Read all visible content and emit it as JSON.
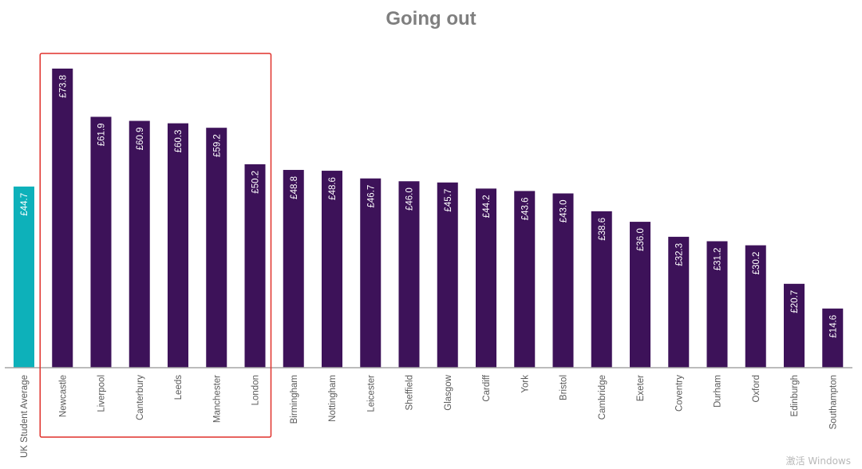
{
  "chart_data": {
    "type": "bar",
    "title": "Going out",
    "categories": [
      "UK Student Average",
      "Newcastle",
      "Liverpool",
      "Canterbury",
      "Leeds",
      "Manchester",
      "London",
      "Birmingham",
      "Nottingham",
      "Leicester",
      "Sheffield",
      "Glasgow",
      "Cardiff",
      "York",
      "Bristol",
      "Cambridge",
      "Exeter",
      "Coventry",
      "Durham",
      "Oxford",
      "Edinburgh",
      "Southampton"
    ],
    "values": [
      44.7,
      73.8,
      61.9,
      60.9,
      60.3,
      59.2,
      50.2,
      48.8,
      48.6,
      46.7,
      46.0,
      45.7,
      44.2,
      43.6,
      43.0,
      38.6,
      36.0,
      32.3,
      31.2,
      30.2,
      20.7,
      14.6
    ],
    "data_labels": [
      "£44.7",
      "£73.8",
      "£61.9",
      "£60.9",
      "£60.3",
      "£59.2",
      "£50.2",
      "£48.8",
      "£48.6",
      "£46.7",
      "£46.0",
      "£45.7",
      "£44.2",
      "£43.6",
      "£43.0",
      "£38.6",
      "£36.0",
      "£32.3",
      "£31.2",
      "£30.2",
      "£20.7",
      "£14.6"
    ],
    "ylim": [
      0,
      78
    ],
    "grid": false,
    "highlight_categories": [
      "Newcastle",
      "Liverpool",
      "Canterbury",
      "Leeds",
      "Manchester",
      "London"
    ],
    "colors": {
      "average_bar": "#0db1ba",
      "bar": "#3d1259",
      "highlight_box": "#e0312b",
      "title": "#7f7f7f",
      "axis": "#a6a6a6",
      "tick_label": "#595959",
      "data_label": "#ffffff"
    }
  },
  "watermark": "激活 Windows"
}
